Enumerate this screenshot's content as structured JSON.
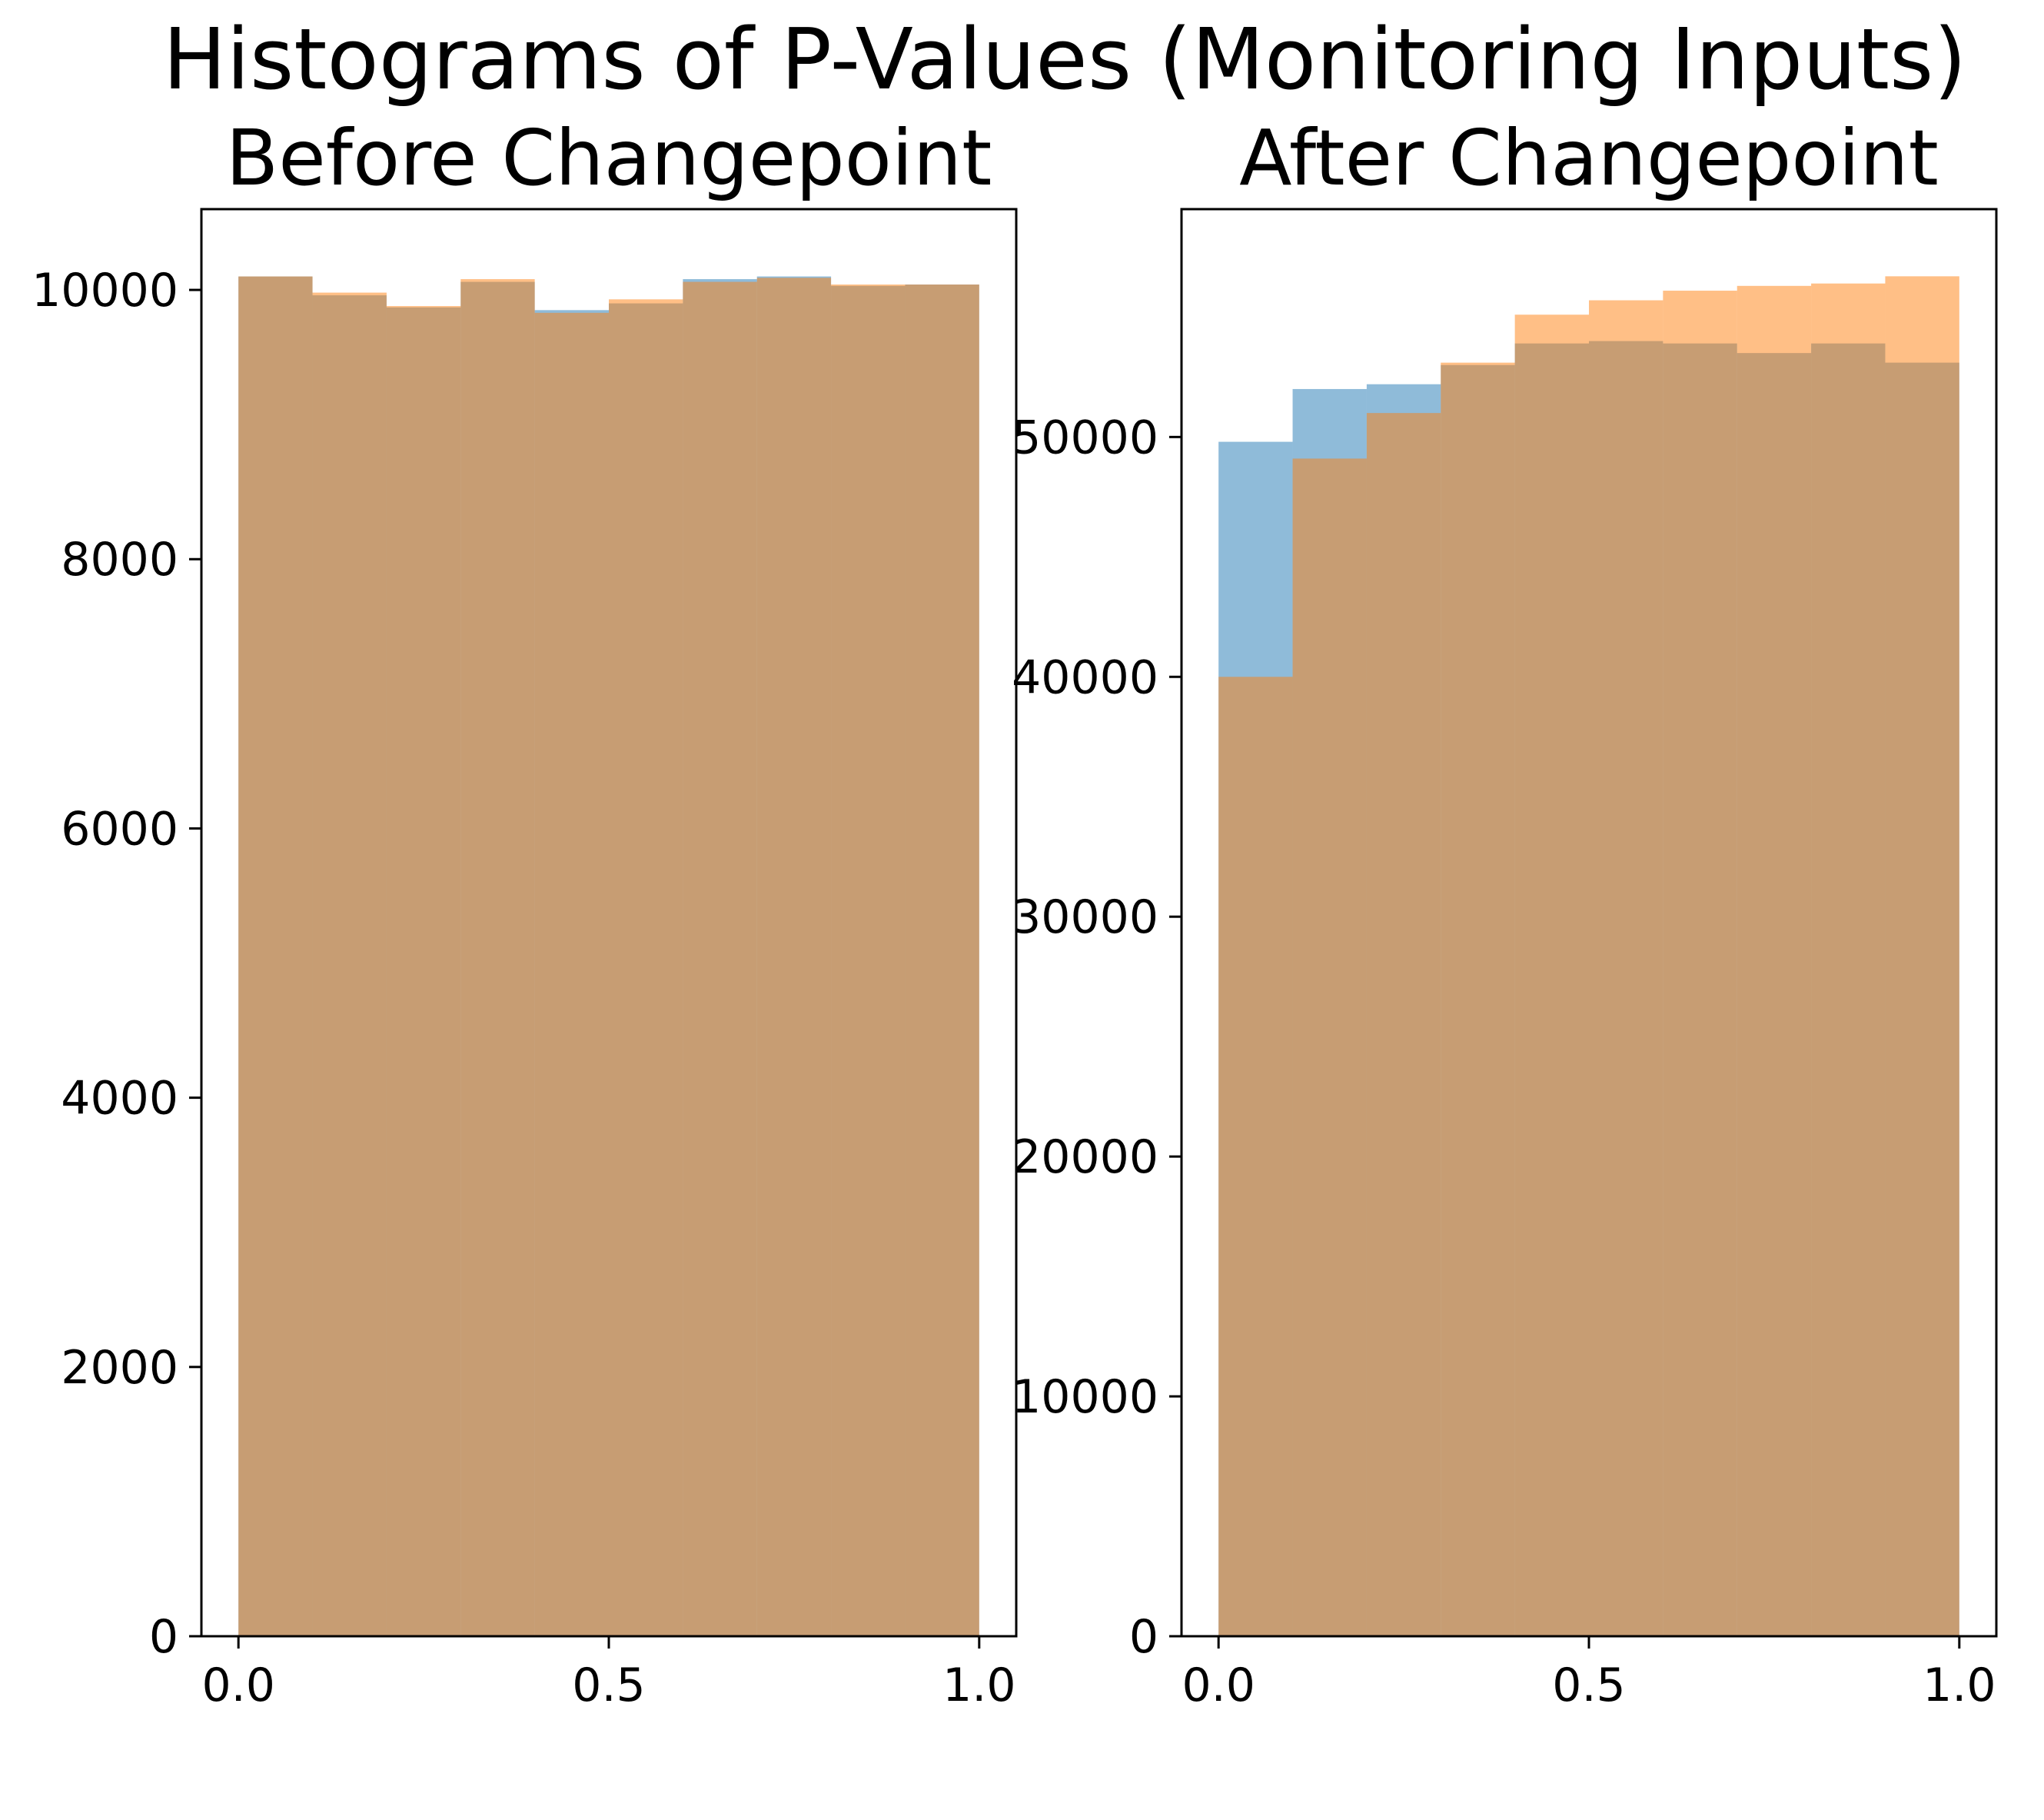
{
  "figure": {
    "title": "Histograms of P-Values (Monitoring Inputs)"
  },
  "chart_data": [
    {
      "type": "bar",
      "title": "Before Changepoint",
      "xlabel": "",
      "ylabel": "",
      "bin_edges": [
        0.0,
        0.1,
        0.2,
        0.3,
        0.4,
        0.5,
        0.6,
        0.7,
        0.8,
        0.9,
        1.0
      ],
      "xlim": [
        -0.05,
        1.05
      ],
      "ylim": [
        0,
        10600
      ],
      "xticks": [
        0.0,
        0.5,
        1.0
      ],
      "xtick_labels": [
        "0.0",
        "0.5",
        "1.0"
      ],
      "yticks": [
        0,
        2000,
        4000,
        6000,
        8000,
        10000
      ],
      "ytick_labels": [
        "0",
        "2000",
        "4000",
        "6000",
        "8000",
        "10000"
      ],
      "grid": false,
      "series": [
        {
          "color": "#1f77b4",
          "alpha": 0.5,
          "values": [
            10100,
            9960,
            9870,
            10060,
            9850,
            9900,
            10080,
            10100,
            10030,
            10040
          ]
        },
        {
          "color": "#ff7f0e",
          "alpha": 0.5,
          "values": [
            10100,
            9980,
            9880,
            10080,
            9830,
            9930,
            10060,
            10090,
            10040,
            10040
          ]
        }
      ]
    },
    {
      "type": "bar",
      "title": "After Changepoint",
      "xlabel": "",
      "ylabel": "",
      "bin_edges": [
        0.0,
        0.1,
        0.2,
        0.3,
        0.4,
        0.5,
        0.6,
        0.7,
        0.8,
        0.9,
        1.0
      ],
      "xlim": [
        -0.05,
        1.05
      ],
      "ylim": [
        0,
        59500
      ],
      "xticks": [
        0.0,
        0.5,
        1.0
      ],
      "xtick_labels": [
        "0.0",
        "0.5",
        "1.0"
      ],
      "yticks": [
        0,
        10000,
        20000,
        30000,
        40000,
        50000
      ],
      "ytick_labels": [
        "0",
        "10000",
        "20000",
        "30000",
        "40000",
        "50000"
      ],
      "grid": false,
      "series": [
        {
          "color": "#1f77b4",
          "alpha": 0.5,
          "values": [
            49800,
            52000,
            52200,
            53000,
            53900,
            54000,
            53900,
            53500,
            53900,
            53100
          ]
        },
        {
          "color": "#ff7f0e",
          "alpha": 0.5,
          "values": [
            40000,
            49100,
            51000,
            53100,
            55100,
            55700,
            56100,
            56300,
            56400,
            56700
          ]
        }
      ]
    }
  ]
}
